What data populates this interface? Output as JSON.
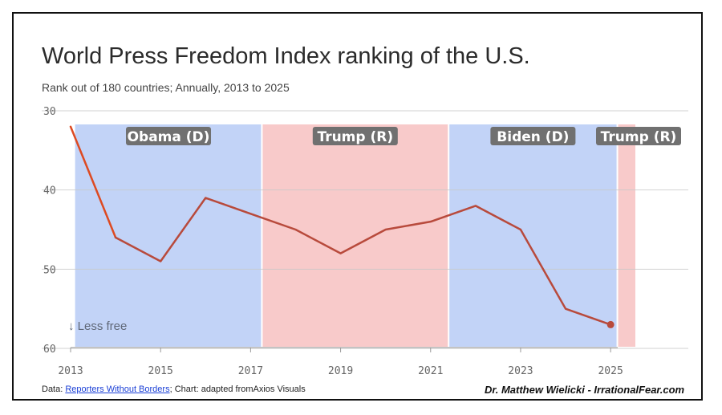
{
  "title": "World Press Freedom Index ranking of the U.S.",
  "subtitle": "Rank out of 180 countries; Annually, 2013 to 2025",
  "footer": {
    "data_prefix": "Data: ",
    "source_link": "Reporters Without Borders",
    "chart_credit": "; Chart: adapted fromAxios Visuals",
    "author": "Dr. Matthew Wielicki - IrrationalFear.com"
  },
  "colors": {
    "line": "#b84a3c",
    "line_start": "#dd4a22",
    "democrat_band": "#c2d3f7",
    "republican_band": "#f8caca",
    "label_bg": "#707070",
    "annotation": "#606878"
  },
  "chart_data": {
    "type": "line",
    "title": "World Press Freedom Index ranking of the U.S.",
    "subtitle": "Rank out of 180 countries; Annually, 2013 to 2025",
    "xlabel": "",
    "ylabel": "",
    "x": [
      2013,
      2014,
      2015,
      2016,
      2017,
      2018,
      2019,
      2020,
      2021,
      2022,
      2023,
      2024,
      2025
    ],
    "values": [
      32,
      46,
      49,
      41,
      43,
      45,
      48,
      45,
      44,
      42,
      45,
      55,
      57
    ],
    "xlim": [
      2013,
      2025.55
    ],
    "ylim": [
      30,
      60
    ],
    "y_inverted": true,
    "x_ticks": [
      "2013",
      "2015",
      "2017",
      "2019",
      "2021",
      "2023",
      "2025"
    ],
    "x_tick_values": [
      2013,
      2015,
      2017,
      2019,
      2021,
      2023,
      2025
    ],
    "y_ticks": [
      "30",
      "40",
      "50",
      "60"
    ],
    "y_tick_values": [
      30,
      40,
      50,
      60
    ],
    "grid": true,
    "annotation": "↓ Less free",
    "periods": [
      {
        "label": "Obama (D)",
        "party": "D",
        "start": 2013.1,
        "end": 2017.25
      },
      {
        "label": "Trump (R)",
        "party": "R",
        "start": 2017.25,
        "end": 2021.4
      },
      {
        "label": "Biden (D)",
        "party": "D",
        "start": 2021.4,
        "end": 2025.15
      },
      {
        "label": "Trump (R)",
        "party": "R",
        "start": 2025.15,
        "end": 2025.55
      }
    ]
  }
}
